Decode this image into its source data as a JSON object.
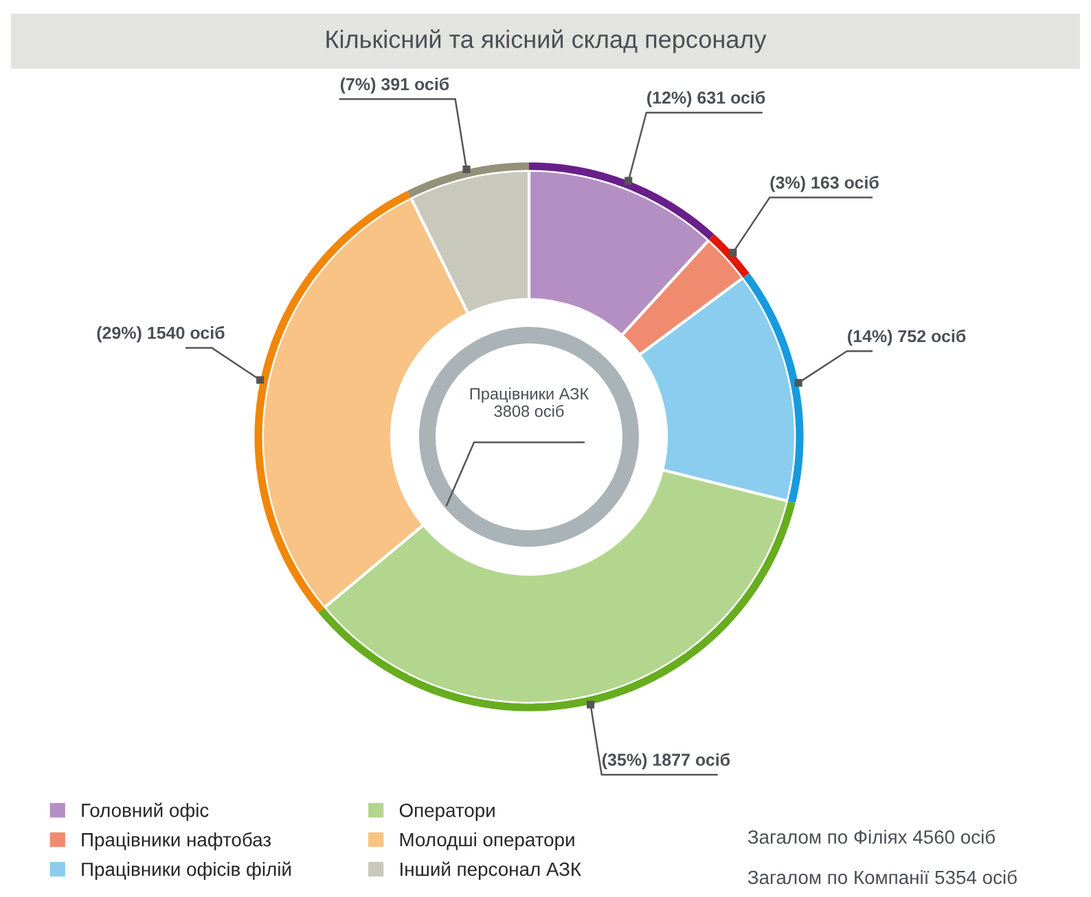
{
  "chart_data": {
    "type": "donut",
    "title": "Кількісний та якісний склад персоналу",
    "categories": [
      "Головний офіс",
      "Працівники нафтобаз",
      "Працівники офісів філій",
      "Оператори",
      "Молодші оператори",
      "Інший персонал АЗК"
    ],
    "values": [
      631,
      163,
      752,
      1877,
      1540,
      391
    ],
    "colors": [
      "#b48fc4",
      "#f08b70",
      "#8bcdee",
      "#b3d68f",
      "#f8c384",
      "#c9c8bc"
    ],
    "value_labels": [
      "(12%) 631 осіб",
      "(3%) 163 осіб",
      "(14%) 752 осіб",
      "(35%) 1877 осіб",
      "(29%) 1540 осіб",
      "(7%) 391 осіб"
    ],
    "legend": "bottom",
    "annotations": [
      "Працівники АЗК\n3808 осіб",
      "Загалом по Філіях 4560 осіб",
      "Загалом по Компанії 5354 осіб"
    ]
  }
}
